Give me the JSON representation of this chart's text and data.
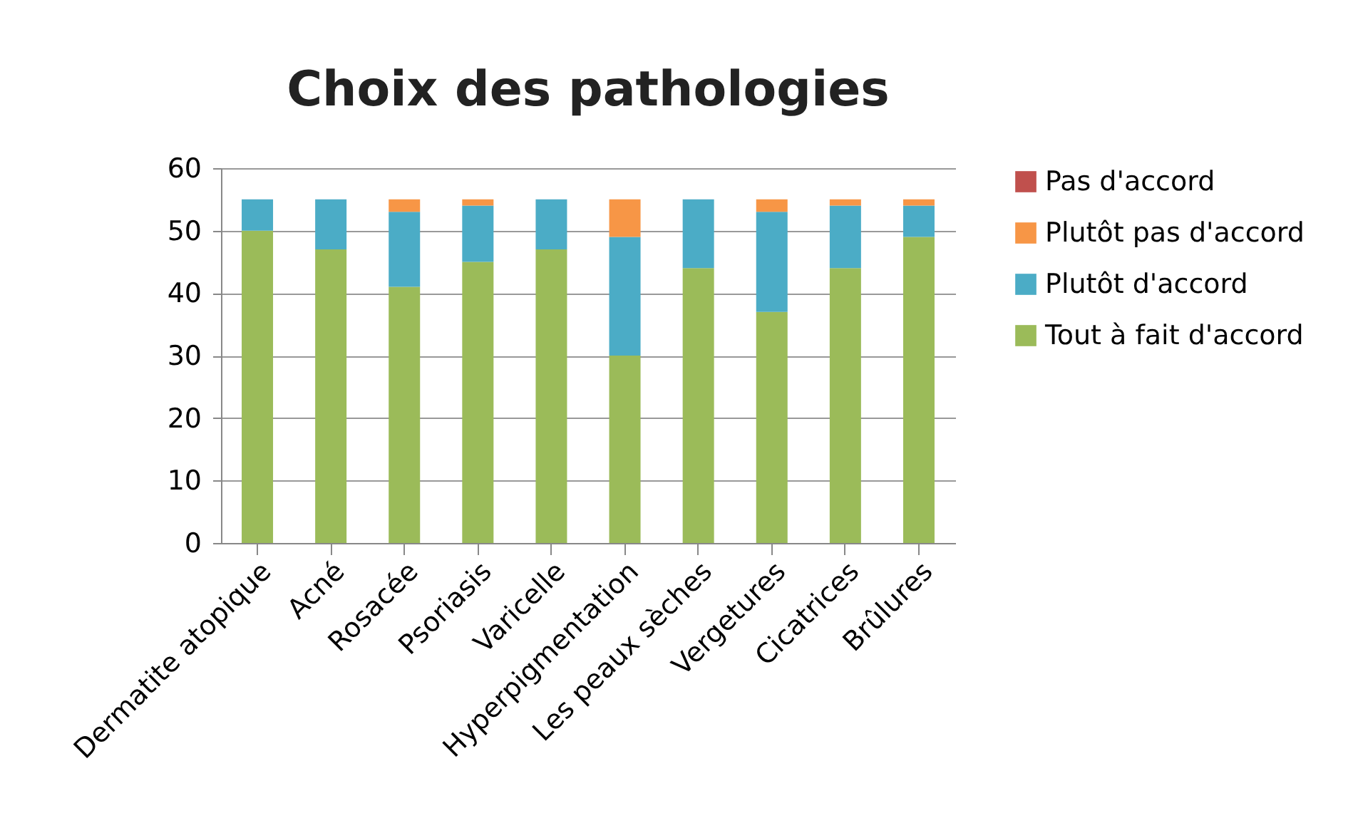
{
  "chart_data": {
    "type": "bar",
    "title": "Choix des pathologies",
    "stacked": true,
    "categories": [
      "Dermatite atopique",
      "Acné",
      "Rosacée",
      "Psoriasis",
      "Varicelle",
      "Hyperpigmentation",
      "Les peaux sèches",
      "Vergetures",
      "Cicatrices",
      "Brûlures"
    ],
    "series": [
      {
        "name": "Tout à fait d'accord",
        "color": "#9bbb59",
        "values": [
          50,
          47,
          41,
          45,
          47,
          30,
          44,
          37,
          44,
          49
        ]
      },
      {
        "name": "Plutôt d'accord",
        "color": "#4bacc6",
        "values": [
          5,
          8,
          12,
          9,
          8,
          19,
          11,
          16,
          10,
          5
        ]
      },
      {
        "name": "Plutôt pas d'accord",
        "color": "#f79646",
        "values": [
          0,
          0,
          2,
          1,
          0,
          6,
          0,
          2,
          1,
          1
        ]
      },
      {
        "name": "Pas d'accord",
        "color": "#c0504d",
        "values": [
          0,
          0,
          0,
          0,
          0,
          0,
          0,
          0,
          0,
          0
        ]
      }
    ],
    "ylim": [
      0,
      60
    ],
    "yticks": [
      0,
      10,
      20,
      30,
      40,
      50,
      60
    ],
    "grid": "y",
    "legend": "right"
  }
}
